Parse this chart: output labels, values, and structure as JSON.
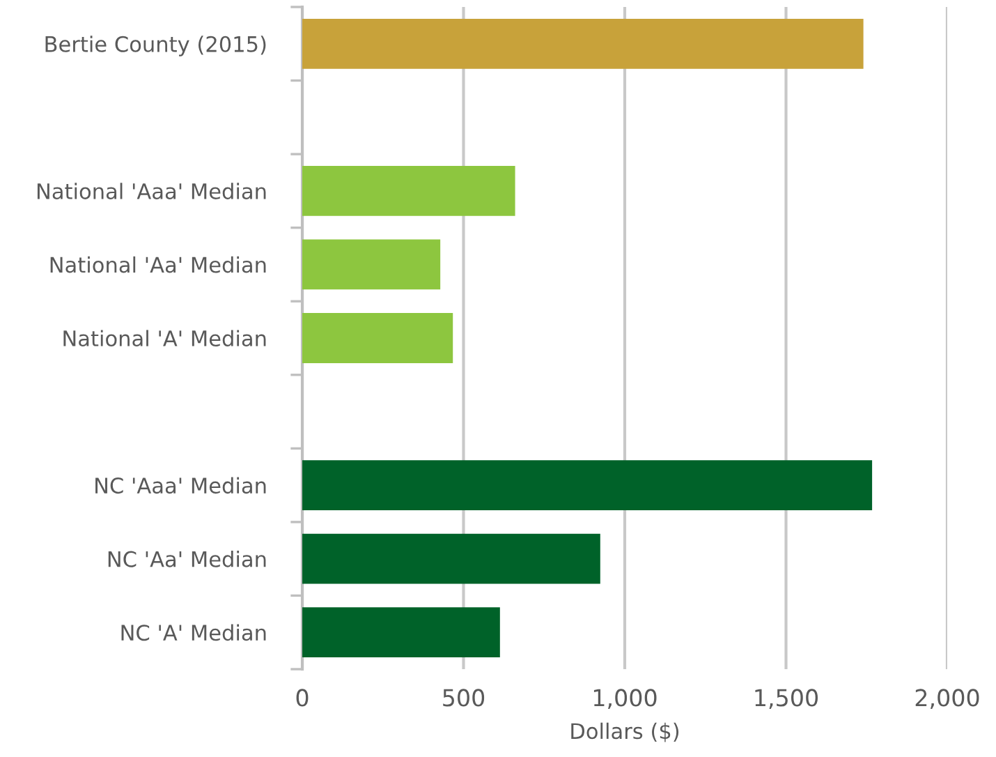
{
  "chart_data": {
    "type": "bar",
    "orientation": "horizontal",
    "xlabel": "Dollars ($)",
    "categories": [
      "Bertie County (2015)",
      null,
      "National 'Aaa' Median",
      "National 'Aa' Median",
      "National 'A' Median",
      null,
      "NC 'Aaa' Median",
      "NC 'Aa' Median",
      "NC 'A' Median"
    ],
    "values": [
      1740,
      null,
      660,
      428,
      467,
      null,
      1767,
      924,
      613
    ],
    "colors": [
      "#c8a23a",
      "#ffffff",
      "#8dc63f",
      "#8dc63f",
      "#8dc63f",
      "#ffffff",
      "#006229",
      "#006229",
      "#006229"
    ],
    "xlim": [
      0,
      2000
    ],
    "xticks": [
      0,
      {
        "value": 500,
        "label": "500"
      },
      {
        "value": 1000,
        "label": "1,000"
      },
      {
        "value": 1500,
        "label": "1,500"
      },
      {
        "value": 2000,
        "label": "2,000"
      }
    ],
    "grid": "x"
  }
}
